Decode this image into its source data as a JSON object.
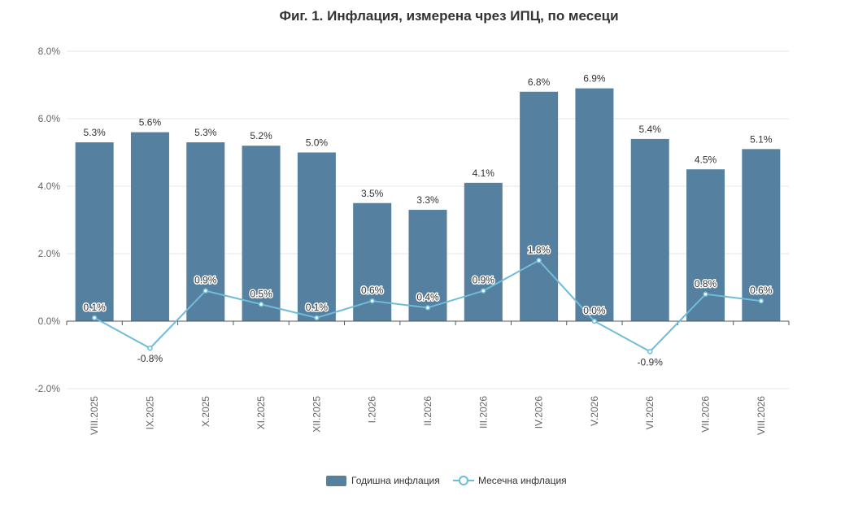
{
  "chart_data": {
    "type": "bar",
    "title": "Фиг. 1. Инфлация, измерена чрез ИПЦ, по месеци",
    "categories": [
      "VIII.2025",
      "IX.2025",
      "X.2025",
      "XI.2025",
      "XII.2025",
      "I.2026",
      "II.2026",
      "III.2026",
      "IV.2026",
      "V.2026",
      "VI.2026",
      "VII.2026",
      "VIII.2026"
    ],
    "ylim": [
      -2.0,
      8.0
    ],
    "yticks": [
      -2.0,
      0.0,
      2.0,
      4.0,
      6.0,
      8.0
    ],
    "ytick_labels": [
      "-2.0%",
      "0.0%",
      "2.0%",
      "4.0%",
      "6.0%",
      "8.0%"
    ],
    "grid": true,
    "legend_position": "bottom-center",
    "series": [
      {
        "name": "Годишна инфлация",
        "type": "bar",
        "color": "#55809f",
        "values": [
          5.3,
          5.6,
          5.3,
          5.2,
          5.0,
          3.5,
          3.3,
          4.1,
          6.8,
          6.9,
          5.4,
          4.5,
          5.1
        ],
        "labels": [
          "5.3%",
          "5.6%",
          "5.3%",
          "5.2%",
          "5.0%",
          "3.5%",
          "3.3%",
          "4.1%",
          "6.8%",
          "6.9%",
          "5.4%",
          "4.5%",
          "5.1%"
        ]
      },
      {
        "name": "Месечна инфлация",
        "type": "line",
        "color": "#6fbcd9",
        "values": [
          0.1,
          -0.8,
          0.9,
          0.5,
          0.1,
          0.6,
          0.4,
          0.9,
          1.8,
          0.0,
          -0.9,
          0.8,
          0.6
        ],
        "labels": [
          "0.1%",
          "-0.8%",
          "0.9%",
          "0.5%",
          "0.1%",
          "0.6%",
          "0.4%",
          "0.9%",
          "1.8%",
          "0.0%",
          "-0.9%",
          "0.8%",
          "0.6%"
        ]
      }
    ]
  }
}
